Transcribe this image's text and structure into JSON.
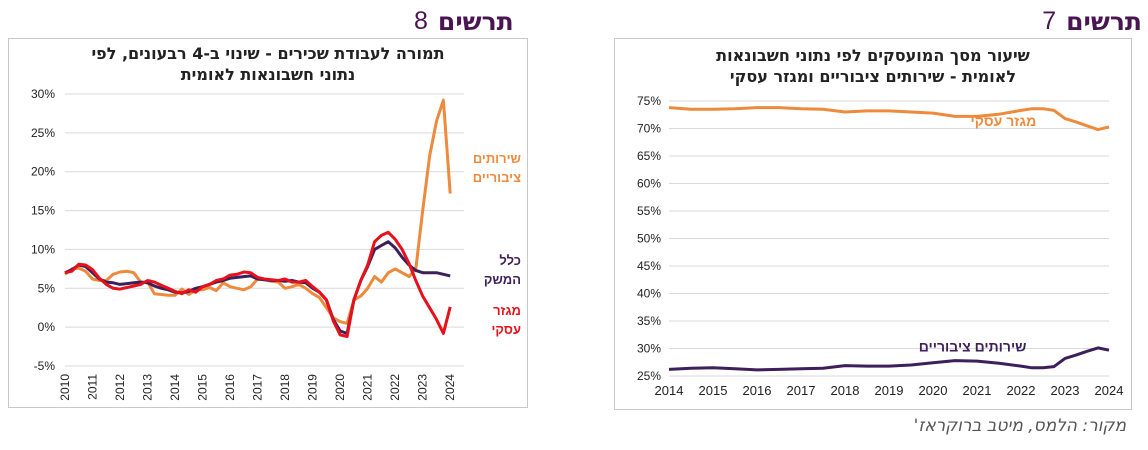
{
  "right_header": {
    "word": "תרשים",
    "number": "7"
  },
  "left_header": {
    "word": "תרשים",
    "number": "8"
  },
  "source": "מקור: הלמס, מיטב ברוקראז'",
  "colors": {
    "header": "#4b1553",
    "orange": "#ee8a3c",
    "purple": "#3d1f5c",
    "red": "#e8111b",
    "grid": "#d9d9d9"
  },
  "chart_data": [
    {
      "id": "chart7",
      "type": "line",
      "title_line1": "שיעור מסך המועסקים לפי נתוני חשבונאות",
      "title_line2": "לאומית - שירותים ציבוריים ומגזר עסקי",
      "ylim": [
        0.25,
        0.75
      ],
      "y_ticks": [
        "25%",
        "30%",
        "35%",
        "40%",
        "45%",
        "50%",
        "55%",
        "60%",
        "65%",
        "70%",
        "75%"
      ],
      "y_tick_values": [
        0.25,
        0.3,
        0.35,
        0.4,
        0.45,
        0.5,
        0.55,
        0.6,
        0.65,
        0.7,
        0.75
      ],
      "xlim": [
        2014,
        2024
      ],
      "x_ticks": [
        "2014",
        "2015",
        "2016",
        "2017",
        "2018",
        "2019",
        "2020",
        "2021",
        "2022",
        "2023",
        "2024"
      ],
      "x_tick_values": [
        2014,
        2015,
        2016,
        2017,
        2018,
        2019,
        2020,
        2021,
        2022,
        2023,
        2024
      ],
      "series": [
        {
          "name": "מגזר עסקי",
          "color": "orange",
          "x": [
            2014,
            2014.5,
            2015,
            2015.5,
            2016,
            2016.5,
            2017,
            2017.5,
            2018,
            2018.5,
            2019,
            2019.5,
            2020,
            2020.5,
            2021,
            2021.5,
            2022,
            2022.25,
            2022.5,
            2022.75,
            2023,
            2023.25,
            2023.5,
            2023.75,
            2024
          ],
          "y": [
            0.738,
            0.735,
            0.735,
            0.736,
            0.738,
            0.738,
            0.736,
            0.735,
            0.73,
            0.732,
            0.732,
            0.73,
            0.728,
            0.722,
            0.722,
            0.726,
            0.733,
            0.736,
            0.736,
            0.733,
            0.718,
            0.712,
            0.705,
            0.698,
            0.703
          ]
        },
        {
          "name": "שירותים  ציבוריים",
          "color": "purple",
          "x": [
            2014,
            2014.5,
            2015,
            2015.5,
            2016,
            2016.5,
            2017,
            2017.5,
            2018,
            2018.5,
            2019,
            2019.5,
            2020,
            2020.5,
            2021,
            2021.5,
            2022,
            2022.25,
            2022.5,
            2022.75,
            2023,
            2023.25,
            2023.5,
            2023.75,
            2024
          ],
          "y": [
            0.262,
            0.264,
            0.265,
            0.263,
            0.261,
            0.262,
            0.263,
            0.264,
            0.269,
            0.268,
            0.268,
            0.27,
            0.274,
            0.278,
            0.277,
            0.273,
            0.268,
            0.265,
            0.265,
            0.267,
            0.282,
            0.288,
            0.295,
            0.301,
            0.297
          ]
        }
      ],
      "labels": [
        {
          "text": "מגזר עסקי",
          "color": "orange",
          "x": 2021.6,
          "y": 0.705
        },
        {
          "text": "שירותים  ציבוריים",
          "color": "purple",
          "x": 2020.9,
          "y": 0.295
        }
      ]
    },
    {
      "id": "chart8",
      "type": "line",
      "title_line1": "תמורה לעבודת שכירים - שינוי ב-4 רבעונים, לפי",
      "title_line2": "נתוני חשבונאות לאומית",
      "ylim": [
        -0.05,
        0.3
      ],
      "y_ticks": [
        "-5%",
        "0%",
        "5%",
        "10%",
        "15%",
        "20%",
        "25%",
        "30%"
      ],
      "y_tick_values": [
        -0.05,
        0,
        0.05,
        0.1,
        0.15,
        0.2,
        0.25,
        0.3
      ],
      "xlim": [
        2010,
        2024.5
      ],
      "x_ticks": [
        "2010",
        "2011",
        "2012",
        "2013",
        "2014",
        "2015",
        "2016",
        "2017",
        "2018",
        "2019",
        "2020",
        "2021",
        "2022",
        "2023",
        "2024"
      ],
      "x_tick_values": [
        2010,
        2011,
        2012,
        2013,
        2014,
        2015,
        2016,
        2017,
        2018,
        2019,
        2020,
        2021,
        2022,
        2023,
        2024
      ],
      "series": [
        {
          "name": "שירותים ציבוריים",
          "color": "orange",
          "x": [
            2010,
            2010.25,
            2010.5,
            2010.75,
            2011,
            2011.25,
            2011.5,
            2011.75,
            2012,
            2012.25,
            2012.5,
            2012.75,
            2013,
            2013.25,
            2013.5,
            2013.75,
            2014,
            2014.25,
            2014.5,
            2014.75,
            2015,
            2015.25,
            2015.5,
            2015.75,
            2016,
            2016.25,
            2016.5,
            2016.75,
            2017,
            2017.25,
            2017.5,
            2017.75,
            2018,
            2018.25,
            2018.5,
            2018.75,
            2019,
            2019.25,
            2019.5,
            2019.75,
            2020,
            2020.25,
            2020.5,
            2020.75,
            2021,
            2021.25,
            2021.5,
            2021.75,
            2022,
            2022.25,
            2022.5,
            2022.75,
            2023,
            2023.25,
            2023.5,
            2023.75,
            2024
          ],
          "y": [
            0.068,
            0.075,
            0.076,
            0.072,
            0.062,
            0.06,
            0.06,
            0.068,
            0.071,
            0.072,
            0.07,
            0.058,
            0.058,
            0.043,
            0.042,
            0.041,
            0.041,
            0.049,
            0.042,
            0.048,
            0.048,
            0.051,
            0.047,
            0.057,
            0.052,
            0.05,
            0.048,
            0.052,
            0.062,
            0.061,
            0.059,
            0.058,
            0.05,
            0.052,
            0.055,
            0.05,
            0.043,
            0.038,
            0.025,
            0.012,
            0.007,
            0.005,
            0.035,
            0.04,
            0.05,
            0.065,
            0.058,
            0.07,
            0.075,
            0.07,
            0.065,
            0.075,
            0.15,
            0.22,
            0.265,
            0.292,
            0.172
          ]
        },
        {
          "name": "כלל המשק",
          "color": "purple",
          "x": [
            2010,
            2010.25,
            2010.5,
            2010.75,
            2011,
            2011.25,
            2011.5,
            2011.75,
            2012,
            2012.25,
            2012.5,
            2012.75,
            2013,
            2013.25,
            2013.5,
            2013.75,
            2014,
            2014.25,
            2014.5,
            2014.75,
            2015,
            2015.25,
            2015.5,
            2015.75,
            2016,
            2016.25,
            2016.5,
            2016.75,
            2017,
            2017.25,
            2017.5,
            2017.75,
            2018,
            2018.25,
            2018.5,
            2018.75,
            2019,
            2019.25,
            2019.5,
            2019.75,
            2020,
            2020.25,
            2020.5,
            2020.75,
            2021,
            2021.25,
            2021.5,
            2021.75,
            2022,
            2022.25,
            2022.5,
            2022.75,
            2023,
            2023.25,
            2023.5,
            2023.75,
            2024
          ],
          "y": [
            0.07,
            0.074,
            0.08,
            0.078,
            0.07,
            0.062,
            0.058,
            0.057,
            0.055,
            0.056,
            0.057,
            0.058,
            0.057,
            0.053,
            0.05,
            0.048,
            0.045,
            0.044,
            0.046,
            0.05,
            0.052,
            0.055,
            0.058,
            0.06,
            0.063,
            0.064,
            0.065,
            0.066,
            0.062,
            0.061,
            0.06,
            0.06,
            0.059,
            0.06,
            0.058,
            0.057,
            0.05,
            0.045,
            0.035,
            0.01,
            -0.005,
            -0.008,
            0.035,
            0.06,
            0.078,
            0.1,
            0.105,
            0.11,
            0.102,
            0.09,
            0.08,
            0.073,
            0.07,
            0.07,
            0.07,
            0.068,
            0.066
          ]
        },
        {
          "name": "מגזר עסקי",
          "color": "red",
          "x": [
            2010,
            2010.25,
            2010.5,
            2010.75,
            2011,
            2011.25,
            2011.5,
            2011.75,
            2012,
            2012.25,
            2012.5,
            2012.75,
            2013,
            2013.25,
            2013.5,
            2013.75,
            2014,
            2014.25,
            2014.5,
            2014.75,
            2015,
            2015.25,
            2015.5,
            2015.75,
            2016,
            2016.25,
            2016.5,
            2016.75,
            2017,
            2017.25,
            2017.5,
            2017.75,
            2018,
            2018.25,
            2018.5,
            2018.75,
            2019,
            2019.25,
            2019.5,
            2019.75,
            2020,
            2020.25,
            2020.5,
            2020.75,
            2021,
            2021.25,
            2021.5,
            2021.75,
            2022,
            2022.25,
            2022.5,
            2022.75,
            2023,
            2023.25,
            2023.5,
            2023.75,
            2024
          ],
          "y": [
            0.07,
            0.072,
            0.081,
            0.08,
            0.074,
            0.063,
            0.055,
            0.05,
            0.049,
            0.051,
            0.053,
            0.055,
            0.06,
            0.058,
            0.054,
            0.05,
            0.046,
            0.043,
            0.048,
            0.045,
            0.052,
            0.055,
            0.06,
            0.062,
            0.067,
            0.068,
            0.071,
            0.07,
            0.064,
            0.062,
            0.061,
            0.06,
            0.062,
            0.058,
            0.058,
            0.06,
            0.052,
            0.045,
            0.035,
            0.008,
            -0.01,
            -0.012,
            0.035,
            0.06,
            0.08,
            0.11,
            0.118,
            0.122,
            0.113,
            0.1,
            0.082,
            0.06,
            0.04,
            0.025,
            0.01,
            -0.008,
            0.026
          ]
        }
      ],
      "labels": [
        {
          "lines": [
            "שירותים",
            "ציבוריים"
          ],
          "color": "orange"
        },
        {
          "lines": [
            "כלל",
            "המשק"
          ],
          "color": "purple"
        },
        {
          "lines": [
            "מגזר",
            "עסקי"
          ],
          "color": "red"
        }
      ]
    }
  ]
}
